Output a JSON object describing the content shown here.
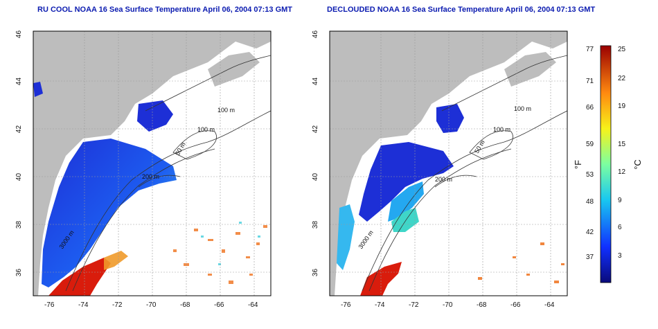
{
  "panels": [
    {
      "id": "left",
      "title": "RU COOL NOAA 16 Sea Surface Temperature April 06, 2004 07:13 GMT",
      "contour_labels": [
        "100 m",
        "100 m",
        "50 m",
        "200 m",
        "3000 m"
      ]
    },
    {
      "id": "right",
      "title": "DECLOUDED NOAA 16 Sea Surface Temperature April 06, 2004 07:13 GMT",
      "contour_labels": [
        "100 m",
        "100 m",
        "50 m",
        "200 m",
        "3000 m"
      ]
    }
  ],
  "axes": {
    "x_ticks": [
      "-76",
      "-74",
      "-72",
      "-70",
      "-68",
      "-66",
      "-64"
    ],
    "y_ticks": [
      "46",
      "44",
      "42",
      "40",
      "38",
      "36"
    ]
  },
  "colorbar": {
    "fahrenheit_ticks": [
      "77",
      "71",
      "66",
      "59",
      "53",
      "48",
      "42",
      "37"
    ],
    "celsius_ticks": [
      "25",
      "22",
      "19",
      "15",
      "12",
      "9",
      "6",
      "3"
    ],
    "fahrenheit_unit": "°F",
    "celsius_unit": "°C"
  },
  "colors": {
    "title": "#0b1bb0",
    "land": "#bdbdbd",
    "cold": "#1d2fd6",
    "warm": "#d91c0c"
  }
}
